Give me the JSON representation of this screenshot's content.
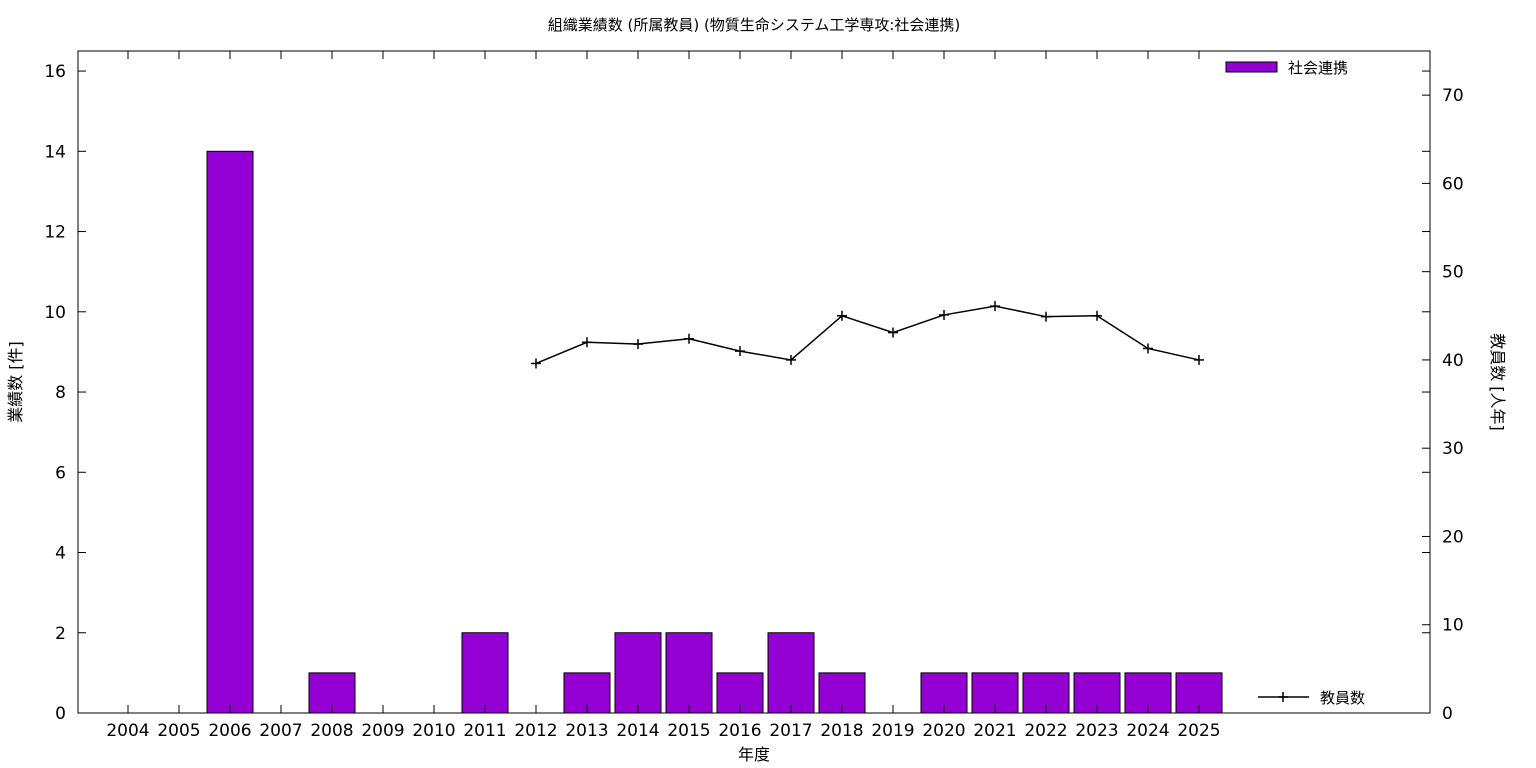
{
  "chart_data": {
    "type": "bar",
    "title": "組織業績数 (所属教員) (物質生命システム工学専攻:社会連携)",
    "xlabel": "年度",
    "ylabel": "業績数 [件]",
    "y2label": "教員数 [人年]",
    "categories": [
      "2004",
      "2005",
      "2006",
      "2007",
      "2008",
      "2009",
      "2010",
      "2011",
      "2012",
      "2013",
      "2014",
      "2015",
      "2016",
      "2017",
      "2018",
      "2019",
      "2020",
      "2021",
      "2022",
      "2023",
      "2024",
      "2025"
    ],
    "ylim": [
      0,
      16.5
    ],
    "yticks": [
      "0",
      "2",
      "4",
      "6",
      "8",
      "10",
      "12",
      "14",
      "16"
    ],
    "y2lim": [
      0,
      75
    ],
    "y2ticks": [
      "0",
      "10",
      "20",
      "30",
      "40",
      "50",
      "60",
      "70"
    ],
    "grid": false,
    "legend_position": "top-right",
    "series": [
      {
        "name": "社会連携",
        "kind": "bar",
        "axis": "left",
        "color": "#9400d3",
        "values": [
          0,
          0,
          14,
          0,
          1,
          0,
          0,
          2,
          0,
          1,
          2,
          2,
          1,
          2,
          1,
          0,
          1,
          1,
          1,
          1,
          1,
          1
        ]
      },
      {
        "name": "教員数",
        "kind": "line",
        "axis": "right",
        "color": "#000000",
        "values": [
          null,
          null,
          null,
          null,
          null,
          null,
          null,
          null,
          39.6,
          42.0,
          41.8,
          42.4,
          41.0,
          40.0,
          45.0,
          43.1,
          45.1,
          46.1,
          44.9,
          45.0,
          41.3,
          40.0
        ]
      }
    ]
  }
}
